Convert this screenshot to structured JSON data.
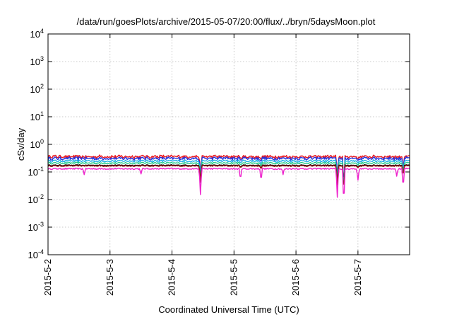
{
  "chart_data": {
    "type": "line",
    "title": "/data/run/goesPlots/archive/2015-05-07/20:00/flux/../bryn/5daysMoon.plot",
    "xlabel": "Coordinated Universal Time (UTC)",
    "ylabel": "cSv/day",
    "y_scale": "log",
    "ylim": [
      0.0001,
      10000
    ],
    "y_ticks": [
      {
        "base": "10",
        "exp": "-4"
      },
      {
        "base": "10",
        "exp": "-3"
      },
      {
        "base": "10",
        "exp": "-2"
      },
      {
        "base": "10",
        "exp": "-1"
      },
      {
        "base": "10",
        "exp": "0"
      },
      {
        "base": "10",
        "exp": "1"
      },
      {
        "base": "10",
        "exp": "2"
      },
      {
        "base": "10",
        "exp": "3"
      },
      {
        "base": "10",
        "exp": "4"
      }
    ],
    "x_range": [
      "2015-05-02 00:00",
      "2015-05-07 20:00"
    ],
    "x_ticks": [
      "2015-5-2",
      "2015-5-3",
      "2015-5-4",
      "2015-5-5",
      "2015-5-6",
      "2015-5-7"
    ],
    "grid": true,
    "legend": "none",
    "series": [
      {
        "color": "#e8161e",
        "baseline": 0.36,
        "variation": 0.12
      },
      {
        "color": "#2233dd",
        "baseline": 0.31,
        "variation": 0.12
      },
      {
        "color": "#1fb0e8",
        "baseline": 0.25,
        "variation": 0.08
      },
      {
        "color": "#22cc88",
        "baseline": 0.21,
        "variation": 0.06
      },
      {
        "color": "#111111",
        "baseline": 0.175,
        "variation": 0.04
      },
      {
        "color": "#a01818",
        "baseline": 0.165,
        "variation": 0.04
      },
      {
        "color": "#ee22cc",
        "baseline": 0.13,
        "variation": 0.05
      }
    ],
    "dips": [
      {
        "x": "2015-05-02 14:00",
        "value": 0.08
      },
      {
        "x": "2015-05-03 12:00",
        "value": 0.085
      },
      {
        "x": "2015-05-04 11:00",
        "value": 0.015
      },
      {
        "x": "2015-05-05 02:30",
        "value": 0.05
      },
      {
        "x": "2015-05-05 10:30",
        "value": 0.045
      },
      {
        "x": "2015-05-05 19:00",
        "value": 0.08
      },
      {
        "x": "2015-05-06 16:00",
        "value": 0.012
      },
      {
        "x": "2015-05-06 18:30",
        "value": 0.006
      },
      {
        "x": "2015-05-07 00:00",
        "value": 0.05
      },
      {
        "x": "2015-05-07 15:00",
        "value": 0.07
      },
      {
        "x": "2015-05-07 17:30",
        "value": 0.025
      }
    ]
  }
}
